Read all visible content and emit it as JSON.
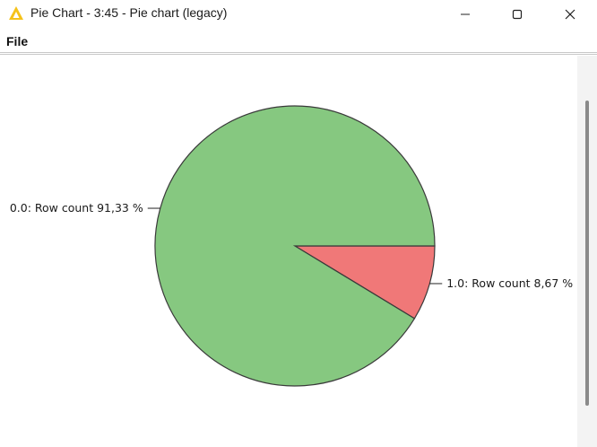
{
  "window": {
    "title": "Pie Chart - 3:45 - Pie chart (legacy)",
    "app_icon": "knime-triangle-icon",
    "controls": [
      "minimize-icon",
      "maximize-icon",
      "close-icon"
    ]
  },
  "menu": {
    "file_label": "File"
  },
  "colors": {
    "slice_0": "#86c880",
    "slice_1": "#f07878",
    "outline": "#3a3a3a"
  },
  "chart_data": {
    "type": "pie",
    "slices": [
      {
        "name": "0.0",
        "value": 91.33,
        "label": "0.0: Row count 91,33 %"
      },
      {
        "name": "1.0",
        "value": 8.67,
        "label": "1.0: Row count 8,67 %"
      }
    ],
    "start_angle_deg": 0,
    "direction": "clockwise",
    "legend": "none"
  }
}
